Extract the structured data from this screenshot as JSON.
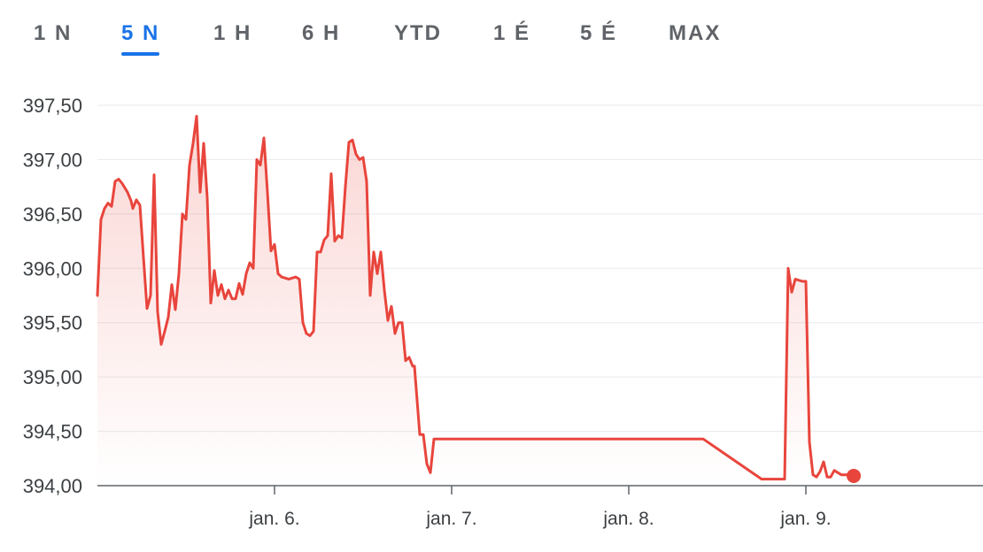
{
  "tabs": [
    {
      "label": "1 N",
      "active": false
    },
    {
      "label": "5 N",
      "active": true
    },
    {
      "label": "1 H",
      "active": false
    },
    {
      "label": "6 H",
      "active": false
    },
    {
      "label": "YTD",
      "active": false
    },
    {
      "label": "1 É",
      "active": false
    },
    {
      "label": "5 É",
      "active": false
    },
    {
      "label": "MAX",
      "active": false
    }
  ],
  "chart_data": {
    "type": "line",
    "x_unit": "days",
    "x_range": [
      5.0,
      10.0
    ],
    "y_range": [
      394.0,
      397.5
    ],
    "y_ticks": [
      {
        "value": 397.5,
        "label": "397,50"
      },
      {
        "value": 397.0,
        "label": "397,00"
      },
      {
        "value": 396.5,
        "label": "396,50"
      },
      {
        "value": 396.0,
        "label": "396,00"
      },
      {
        "value": 395.5,
        "label": "395,50"
      },
      {
        "value": 395.0,
        "label": "395,00"
      },
      {
        "value": 394.5,
        "label": "394,50"
      },
      {
        "value": 394.0,
        "label": "394,00"
      }
    ],
    "x_ticks": [
      {
        "value": 6.0,
        "label": "jan. 6."
      },
      {
        "value": 7.0,
        "label": "jan. 7."
      },
      {
        "value": 8.0,
        "label": "jan. 8."
      },
      {
        "value": 9.0,
        "label": "jan. 9."
      }
    ],
    "grid": true,
    "line_color": "#e8453c",
    "points": [
      [
        5.0,
        395.75
      ],
      [
        5.02,
        396.45
      ],
      [
        5.04,
        396.55
      ],
      [
        5.06,
        396.6
      ],
      [
        5.08,
        396.57
      ],
      [
        5.1,
        396.8
      ],
      [
        5.12,
        396.82
      ],
      [
        5.14,
        396.78
      ],
      [
        5.17,
        396.7
      ],
      [
        5.19,
        396.62
      ],
      [
        5.2,
        396.55
      ],
      [
        5.22,
        396.63
      ],
      [
        5.24,
        396.58
      ],
      [
        5.26,
        396.1
      ],
      [
        5.28,
        395.63
      ],
      [
        5.3,
        395.75
      ],
      [
        5.32,
        396.86
      ],
      [
        5.34,
        395.6
      ],
      [
        5.36,
        395.3
      ],
      [
        5.38,
        395.42
      ],
      [
        5.4,
        395.55
      ],
      [
        5.42,
        395.85
      ],
      [
        5.44,
        395.62
      ],
      [
        5.46,
        395.95
      ],
      [
        5.48,
        396.5
      ],
      [
        5.5,
        396.45
      ],
      [
        5.52,
        396.95
      ],
      [
        5.54,
        397.15
      ],
      [
        5.56,
        397.4
      ],
      [
        5.58,
        396.7
      ],
      [
        5.6,
        397.15
      ],
      [
        5.62,
        396.65
      ],
      [
        5.64,
        395.68
      ],
      [
        5.66,
        395.98
      ],
      [
        5.68,
        395.75
      ],
      [
        5.7,
        395.85
      ],
      [
        5.72,
        395.72
      ],
      [
        5.74,
        395.8
      ],
      [
        5.76,
        395.72
      ],
      [
        5.78,
        395.72
      ],
      [
        5.8,
        395.86
      ],
      [
        5.82,
        395.76
      ],
      [
        5.84,
        395.95
      ],
      [
        5.86,
        396.05
      ],
      [
        5.88,
        396.0
      ],
      [
        5.9,
        397.0
      ],
      [
        5.92,
        396.95
      ],
      [
        5.94,
        397.2
      ],
      [
        5.96,
        396.7
      ],
      [
        5.98,
        396.16
      ],
      [
        6.0,
        396.22
      ],
      [
        6.02,
        395.95
      ],
      [
        6.04,
        395.92
      ],
      [
        6.08,
        395.9
      ],
      [
        6.12,
        395.92
      ],
      [
        6.14,
        395.9
      ],
      [
        6.16,
        395.5
      ],
      [
        6.18,
        395.4
      ],
      [
        6.2,
        395.38
      ],
      [
        6.22,
        395.42
      ],
      [
        6.24,
        396.15
      ],
      [
        6.26,
        396.15
      ],
      [
        6.28,
        396.26
      ],
      [
        6.3,
        396.3
      ],
      [
        6.32,
        396.87
      ],
      [
        6.34,
        396.25
      ],
      [
        6.36,
        396.3
      ],
      [
        6.38,
        396.28
      ],
      [
        6.4,
        396.75
      ],
      [
        6.42,
        397.16
      ],
      [
        6.44,
        397.18
      ],
      [
        6.46,
        397.05
      ],
      [
        6.48,
        397.0
      ],
      [
        6.5,
        397.02
      ],
      [
        6.52,
        396.8
      ],
      [
        6.54,
        395.75
      ],
      [
        6.56,
        396.15
      ],
      [
        6.58,
        395.95
      ],
      [
        6.6,
        396.15
      ],
      [
        6.62,
        395.8
      ],
      [
        6.64,
        395.52
      ],
      [
        6.66,
        395.65
      ],
      [
        6.68,
        395.4
      ],
      [
        6.7,
        395.5
      ],
      [
        6.72,
        395.5
      ],
      [
        6.74,
        395.15
      ],
      [
        6.76,
        395.18
      ],
      [
        6.78,
        395.1
      ],
      [
        6.79,
        395.1
      ],
      [
        6.82,
        394.47
      ],
      [
        6.84,
        394.47
      ],
      [
        6.86,
        394.2
      ],
      [
        6.88,
        394.12
      ],
      [
        6.9,
        394.43
      ],
      [
        6.95,
        394.43
      ],
      [
        7.4,
        394.43
      ],
      [
        7.95,
        394.43
      ],
      [
        8.42,
        394.43
      ],
      [
        8.75,
        394.06
      ],
      [
        8.88,
        394.06
      ],
      [
        8.9,
        396.0
      ],
      [
        8.92,
        395.78
      ],
      [
        8.94,
        395.9
      ],
      [
        8.98,
        395.88
      ],
      [
        9.0,
        395.88
      ],
      [
        9.02,
        394.4
      ],
      [
        9.04,
        394.1
      ],
      [
        9.06,
        394.08
      ],
      [
        9.08,
        394.13
      ],
      [
        9.1,
        394.22
      ],
      [
        9.12,
        394.08
      ],
      [
        9.14,
        394.08
      ],
      [
        9.16,
        394.14
      ],
      [
        9.2,
        394.1
      ],
      [
        9.24,
        394.1
      ],
      [
        9.27,
        394.09
      ]
    ]
  }
}
